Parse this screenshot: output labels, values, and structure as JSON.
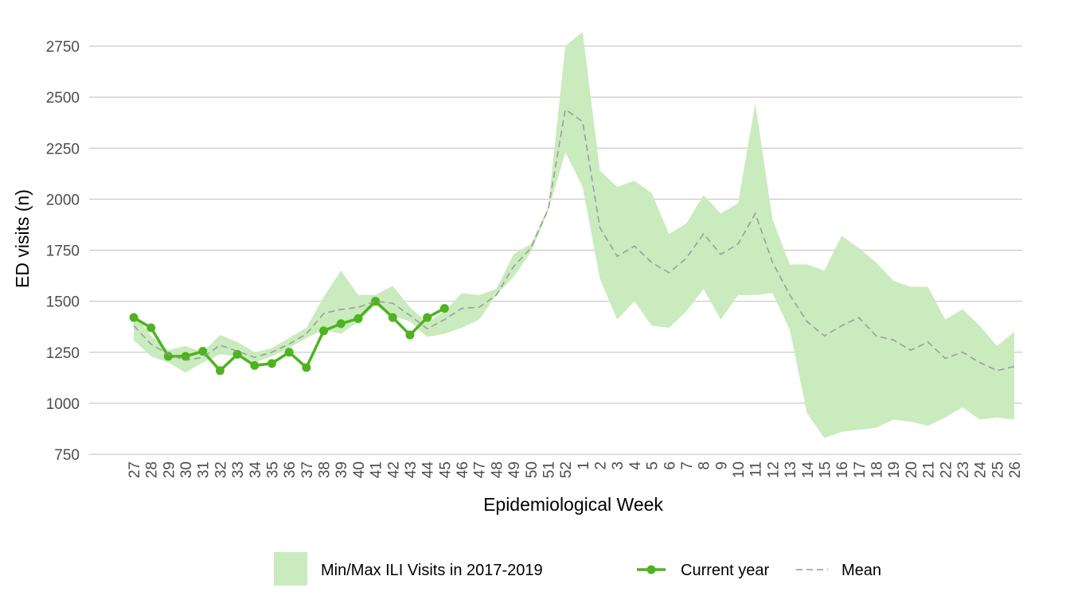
{
  "chart_data": {
    "type": "line",
    "x_label": "Epidemiological Week",
    "y_label": "ED visits (n)",
    "categories": [
      "27",
      "28",
      "29",
      "30",
      "31",
      "32",
      "33",
      "34",
      "35",
      "36",
      "37",
      "38",
      "39",
      "40",
      "41",
      "42",
      "43",
      "44",
      "45",
      "46",
      "47",
      "48",
      "49",
      "50",
      "51",
      "52",
      "1",
      "2",
      "3",
      "4",
      "5",
      "6",
      "7",
      "8",
      "9",
      "10",
      "11",
      "12",
      "13",
      "14",
      "15",
      "16",
      "17",
      "18",
      "19",
      "20",
      "21",
      "22",
      "23",
      "24",
      "25",
      "26"
    ],
    "series": [
      {
        "name": "Min/Max ILI Visits in 2017-2019",
        "color": "#c9ebbd",
        "min": [
          1310,
          1230,
          1200,
          1150,
          1200,
          1240,
          1230,
          1200,
          1230,
          1270,
          1320,
          1360,
          1340,
          1400,
          1480,
          1430,
          1400,
          1325,
          1340,
          1370,
          1410,
          1530,
          1620,
          1740,
          1940,
          2230,
          2060,
          1610,
          1410,
          1500,
          1380,
          1370,
          1450,
          1560,
          1410,
          1530,
          1530,
          1540,
          1360,
          950,
          830,
          860,
          870,
          880,
          920,
          910,
          890,
          930,
          980,
          920,
          930,
          920
        ],
        "max": [
          1450,
          1330,
          1260,
          1280,
          1250,
          1335,
          1300,
          1250,
          1270,
          1320,
          1370,
          1520,
          1650,
          1530,
          1530,
          1575,
          1470,
          1395,
          1450,
          1540,
          1530,
          1560,
          1730,
          1780,
          1960,
          2750,
          2820,
          2140,
          2060,
          2090,
          2030,
          1830,
          1880,
          2020,
          1930,
          1980,
          2470,
          1900,
          1680,
          1680,
          1650,
          1820,
          1760,
          1690,
          1600,
          1570,
          1570,
          1410,
          1460,
          1380,
          1280,
          1350
        ]
      },
      {
        "name": "Current year",
        "color": "#4db31f",
        "values": [
          1420,
          1370,
          1230,
          1230,
          1255,
          1160,
          1240,
          1185,
          1195,
          1250,
          1175,
          1355,
          1390,
          1415,
          1500,
          1420,
          1335,
          1420,
          1465,
          null,
          null,
          null,
          null,
          null,
          null,
          null,
          null,
          null,
          null,
          null,
          null,
          null,
          null,
          null,
          null,
          null,
          null,
          null,
          null,
          null,
          null,
          null,
          null,
          null,
          null,
          null,
          null,
          null,
          null,
          null,
          null,
          null
        ]
      },
      {
        "name": "Mean",
        "color": "#999999",
        "dashed": true,
        "values": [
          1380,
          1290,
          1240,
          1210,
          1225,
          1285,
          1255,
          1225,
          1250,
          1290,
          1340,
          1440,
          1460,
          1470,
          1500,
          1490,
          1430,
          1365,
          1410,
          1465,
          1470,
          1530,
          1670,
          1760,
          1950,
          2440,
          2380,
          1860,
          1720,
          1770,
          1690,
          1640,
          1710,
          1830,
          1730,
          1780,
          1930,
          1690,
          1530,
          1400,
          1330,
          1380,
          1420,
          1330,
          1310,
          1260,
          1300,
          1220,
          1250,
          1200,
          1160,
          1180
        ]
      }
    ],
    "ylim": [
      750,
      2850
    ],
    "yticks": [
      750,
      1000,
      1250,
      1500,
      1750,
      2000,
      2250,
      2500,
      2750
    ],
    "grid": true
  }
}
